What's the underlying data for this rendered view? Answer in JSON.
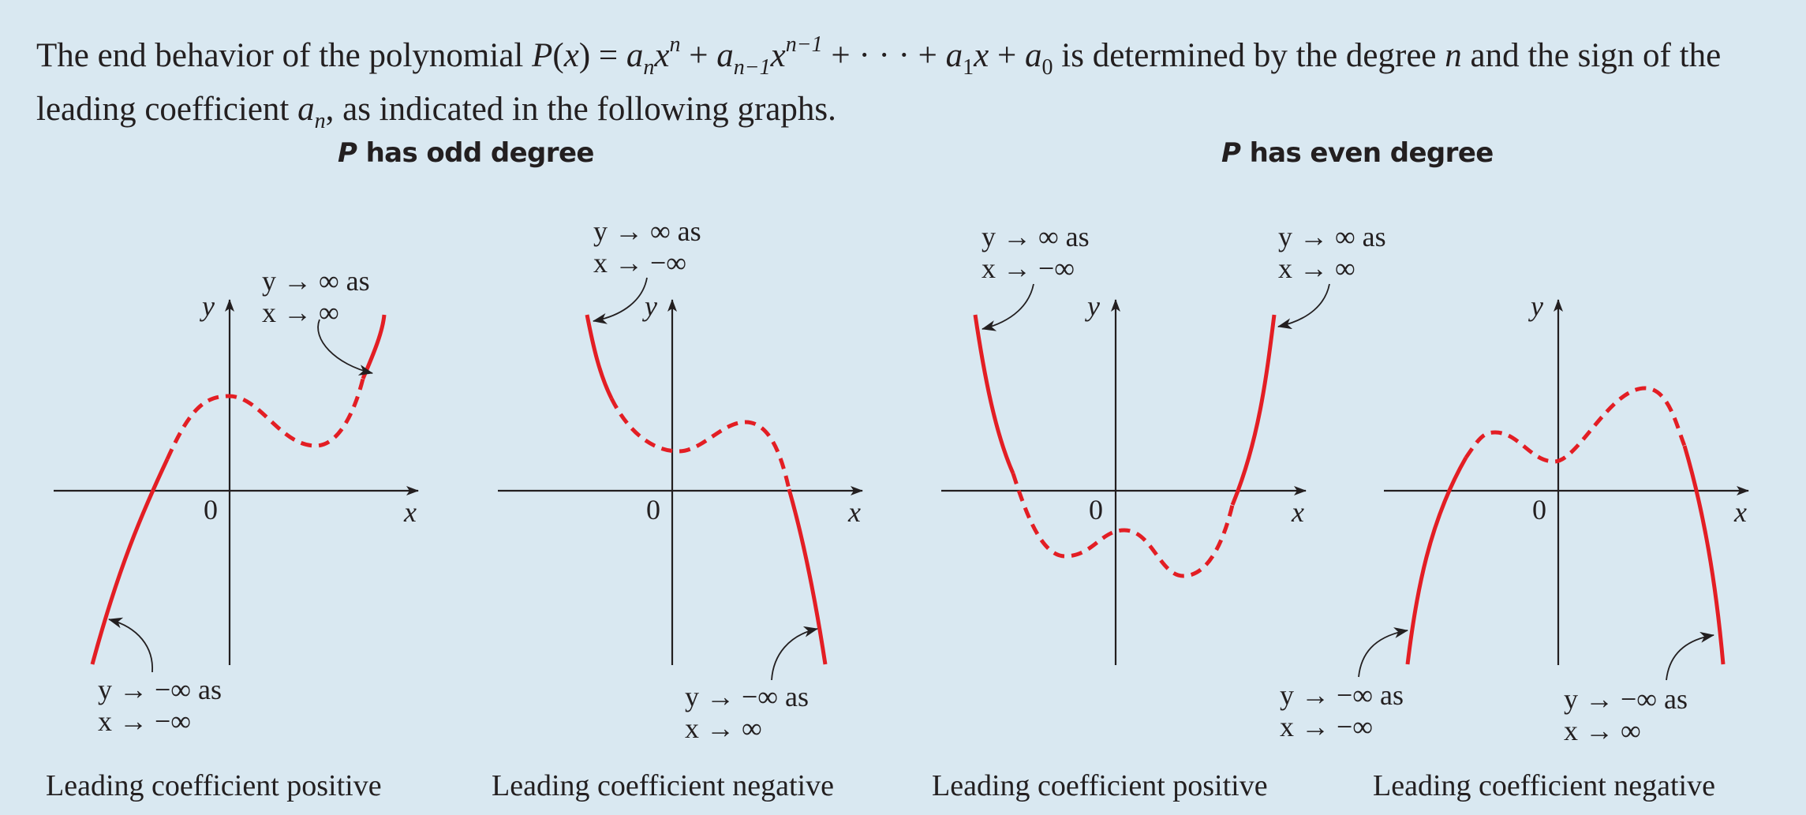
{
  "intro": {
    "t1": "The end behavior of the polynomial ",
    "P": "P",
    "px_open": "(",
    "px_x": "x",
    "px_close": ")",
    "eq": " = ",
    "a": "a",
    "n": "n",
    "n_minus_1": "n−1",
    "x": "x",
    "plus": " + ",
    "dots": "· · ·",
    "one": "1",
    "zero": "0",
    "t2": " is determined by the degree ",
    "t3": " and the sign of the leading coefficient ",
    "t4": ", as indicated in the following graphs."
  },
  "headings": {
    "P": "P",
    "odd": " has odd degree",
    "even": " has even degree"
  },
  "captions": [
    "Leading coefficient positive",
    "Leading coefficient negative",
    "Leading coefficient positive",
    "Leading coefficient negative"
  ],
  "axis": {
    "x": "x",
    "y": "y",
    "origin": "0"
  },
  "annotations": {
    "yinf": "y → ∞ as",
    "yneginf": "y → −∞ as",
    "xinf": "x → ∞",
    "xneginf": "x → −∞"
  },
  "colors": {
    "curve": "#e31e24",
    "ink": "#231f20",
    "background": "#d9e8f1"
  }
}
